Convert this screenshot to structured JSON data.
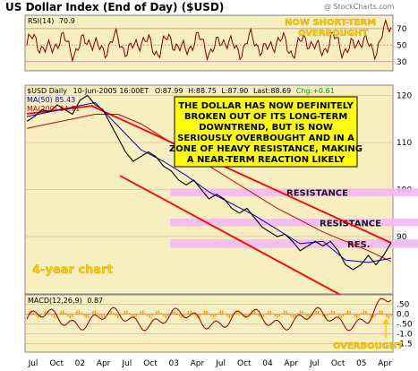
{
  "chart_data": {
    "type": "line",
    "title": "US Dollar Index (End of Day) ($USD)",
    "watermark": "@ StockCharts.com",
    "colors": {
      "price": "#000000",
      "ma50": "#0000cc",
      "ma200": "#cc0000",
      "trendline": "#ff0000",
      "resistance_band": "#f3b8f3",
      "annotation_yellow": "#ffff00",
      "annotation_text": "#000000",
      "overbought_text": "#ffcc00",
      "macd_hist": "#ff9900",
      "rsi_line": "#800000",
      "macd_line": "#000000"
    },
    "x_labels": [
      "Jul",
      "Oct",
      "02",
      "Apr",
      "Jul",
      "Oct",
      "03",
      "Apr",
      "Jul",
      "Oct",
      "04",
      "Apr",
      "Jul",
      "Oct",
      "05",
      "Apr"
    ],
    "rsi": {
      "label": "RSI(14)",
      "value": "70.9",
      "ticks": [
        30,
        50,
        70
      ],
      "ylim": [
        20,
        85
      ],
      "annotation": [
        "NOW SHORT-TERM",
        "OVERBOUGHT"
      ]
    },
    "price": {
      "header": {
        "symbol": "$USD Daily",
        "date": "10-Jun-2005 16:00ET",
        "open": "O:87.99",
        "high": "H:88.75",
        "low": "L:87.90",
        "last": "Last:88.69",
        "chg": "Chg:+0.61"
      },
      "ma50_label": "MA(50) 85.43",
      "ma200_label": "MA(200) 84.71",
      "ticks": [
        90,
        100,
        110,
        120
      ],
      "ylim": [
        78,
        122
      ],
      "series": [
        {
          "name": "$USD",
          "x": [
            0,
            1,
            2,
            3,
            4,
            5,
            6,
            7,
            8,
            9,
            10,
            11,
            12,
            13,
            14,
            15,
            16,
            17,
            18,
            19,
            20,
            21,
            22,
            23,
            24,
            25,
            26,
            27,
            28,
            29,
            30,
            31,
            32,
            33,
            34,
            35,
            36,
            37,
            38,
            39,
            40,
            41,
            42,
            43,
            44,
            45,
            46,
            47,
            48
          ],
          "values": [
            114.5,
            115.5,
            117,
            116.5,
            118,
            117,
            116,
            119,
            120,
            118,
            117,
            114,
            111,
            108,
            106,
            107,
            108,
            107,
            105,
            104,
            102,
            101,
            102,
            100,
            98,
            99,
            98,
            96,
            95,
            96,
            94,
            92,
            91,
            90,
            90.5,
            89,
            87,
            88,
            89,
            88,
            89,
            87,
            84,
            83,
            84,
            86,
            84,
            86,
            88.7
          ]
        },
        {
          "name": "MA(50)",
          "x": [
            0,
            3,
            6,
            9,
            12,
            15,
            18,
            21,
            24,
            27,
            30,
            33,
            36,
            39,
            42,
            45,
            48
          ],
          "values": [
            115.5,
            116.5,
            117.5,
            118.5,
            113.5,
            108.5,
            106,
            103,
            99.5,
            97,
            94.5,
            91.5,
            88.5,
            89,
            85,
            84.5,
            85.4
          ]
        },
        {
          "name": "MA(200)",
          "x": [
            0,
            3,
            6,
            9,
            12,
            15,
            18,
            21,
            24,
            27,
            30,
            33,
            36,
            39,
            42,
            45,
            48
          ],
          "values": [
            113,
            114,
            115,
            116,
            116,
            114,
            111,
            108,
            105,
            102,
            99,
            96,
            93.5,
            91,
            89,
            87,
            84.7
          ]
        }
      ],
      "annotation": [
        "THE DOLLAR HAS NOW DEFINITELY",
        "BROKEN OUT OF ITS LONG-TERM",
        "DOWNTREND, BUT IS NOW",
        "SERIOUSLY OVERBOUGHT AND IN A",
        "ZONE OF HEAVY RESISTANCE, MAKING",
        "A NEAR-TERM REACTION LIKELY"
      ],
      "resistance_zones": [
        {
          "label": "RESISTANCE",
          "low": 98.6,
          "high": 100.2
        },
        {
          "label": "RESISTANCE",
          "low": 92.2,
          "high": 93.8
        },
        {
          "label": "RES.",
          "low": 87.6,
          "high": 89.4
        }
      ],
      "period_label": "4-year chart"
    },
    "macd": {
      "label": "MACD(12,26,9)",
      "value": "0.87",
      "ticks": [
        ".50",
        "0.0",
        "-.50",
        "-1.0",
        "-1.5"
      ],
      "tick_values": [
        0.5,
        0.0,
        -0.5,
        -1.0,
        -1.5
      ],
      "ylim": [
        -1.9,
        0.9
      ],
      "annotation": "OVERBOUGHT"
    }
  }
}
